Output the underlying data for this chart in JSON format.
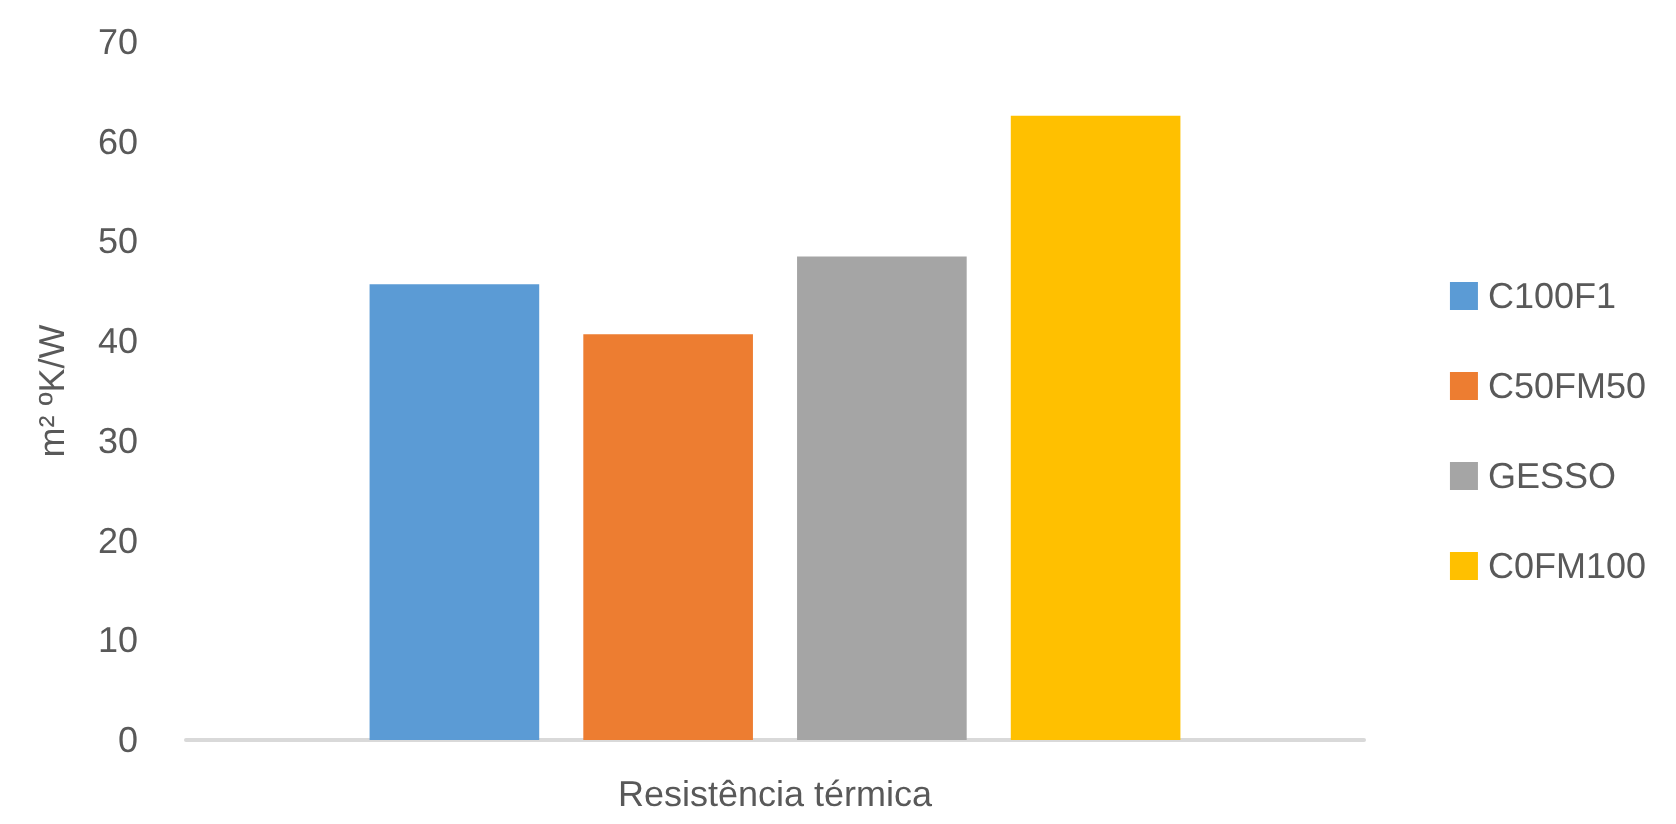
{
  "chart_data": {
    "type": "bar",
    "ylabel": "m² ºK/W",
    "categories": [
      "Resistência térmica"
    ],
    "series": [
      {
        "name": "C100F1",
        "color": "#5b9bd5",
        "values": [
          45.7
        ]
      },
      {
        "name": "C50FM50",
        "color": "#ed7d31",
        "values": [
          40.7
        ]
      },
      {
        "name": "GESSO",
        "color": "#a5a5a5",
        "values": [
          48.5
        ]
      },
      {
        "name": "C0FM100",
        "color": "#ffc000",
        "values": [
          62.6
        ]
      }
    ],
    "ylim": [
      0,
      70
    ],
    "yticks": [
      0,
      10,
      20,
      30,
      40,
      50,
      60,
      70
    ],
    "grid": false,
    "legend": "right"
  }
}
